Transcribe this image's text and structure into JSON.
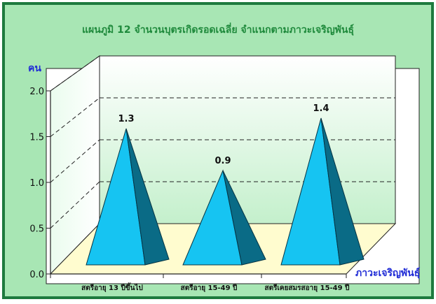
{
  "colors": {
    "frame_outer": "#1e7a3e",
    "frame_inner": "#a8e6b4",
    "title": "#1f8a3c",
    "axis_title": "#1f2bd6",
    "floor": "#fffccf",
    "pyramid_light": "#16c4f2",
    "pyramid_dark": "#0a6b86"
  },
  "chart_data": {
    "type": "bar",
    "bar_shape": "pyramid-3d",
    "title": "แผนภูมิ 12 จำนวนบุตรเกิดรอดเฉลี่ย จำแนกตามภาวะเจริญพันธุ์",
    "xlabel": "ภาวะเจริญพันธุ์",
    "ylabel": "คน",
    "categories": [
      "สตรีอายุ 13 ปีขึ้นไป",
      "สตรีอายุ 15-49 ปี",
      "สตรีเคยสมรสอายุ 15-49 ปี"
    ],
    "values": [
      1.3,
      0.9,
      1.4
    ],
    "data_labels": [
      "1.3",
      "0.9",
      "1.4"
    ],
    "ylim": [
      0,
      2.0
    ],
    "yticks": [
      "0.0",
      "0.5",
      "1.0",
      "1.5",
      "2.0"
    ],
    "grid": "dashed horizontal",
    "legend": "none"
  }
}
